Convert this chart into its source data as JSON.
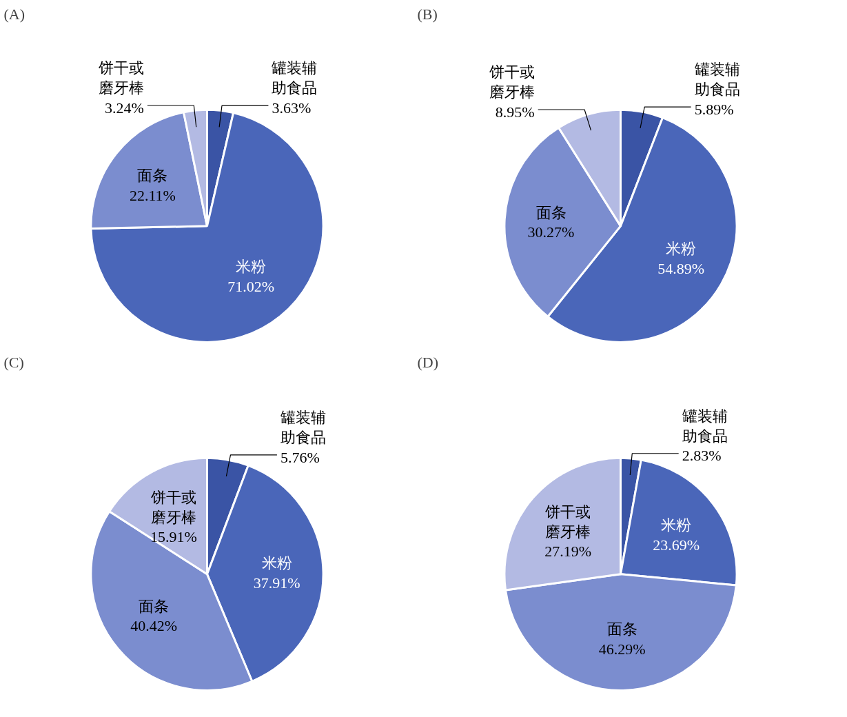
{
  "chart_data": [
    {
      "type": "pie",
      "title": "(A)",
      "categories": [
        "罐装辅助食品",
        "米粉",
        "面条",
        "饼干或磨牙棒"
      ],
      "values": [
        3.63,
        71.02,
        22.11,
        3.24
      ],
      "value_labels": [
        "3.63%",
        "71.02%",
        "22.11%",
        "3.24%"
      ],
      "colors": [
        "#3a54a5",
        "#4a66b9",
        "#7b8dcf",
        "#b3bae3"
      ]
    },
    {
      "type": "pie",
      "title": "(B)",
      "categories": [
        "罐装辅助食品",
        "米粉",
        "面条",
        "饼干或磨牙棒"
      ],
      "values": [
        5.89,
        54.89,
        30.27,
        8.95
      ],
      "value_labels": [
        "5.89%",
        "54.89%",
        "30.27%",
        "8.95%"
      ],
      "colors": [
        "#3a54a5",
        "#4a66b9",
        "#7b8dcf",
        "#b3bae3"
      ]
    },
    {
      "type": "pie",
      "title": "(C)",
      "categories": [
        "罐装辅助食品",
        "米粉",
        "面条",
        "饼干或磨牙棒"
      ],
      "values": [
        5.76,
        37.91,
        40.42,
        15.91
      ],
      "value_labels": [
        "5.76%",
        "37.91%",
        "40.42%",
        "15.91%"
      ],
      "colors": [
        "#3a54a5",
        "#4a66b9",
        "#7b8dcf",
        "#b3bae3"
      ]
    },
    {
      "type": "pie",
      "title": "(D)",
      "categories": [
        "罐装辅助食品",
        "米粉",
        "面条",
        "饼干或磨牙棒"
      ],
      "values": [
        2.83,
        23.69,
        46.29,
        27.19
      ],
      "value_labels": [
        "2.83%",
        "23.69%",
        "46.29%",
        "27.19%"
      ],
      "colors": [
        "#3a54a5",
        "#4a66b9",
        "#7b8dcf",
        "#b3bae3"
      ]
    }
  ]
}
